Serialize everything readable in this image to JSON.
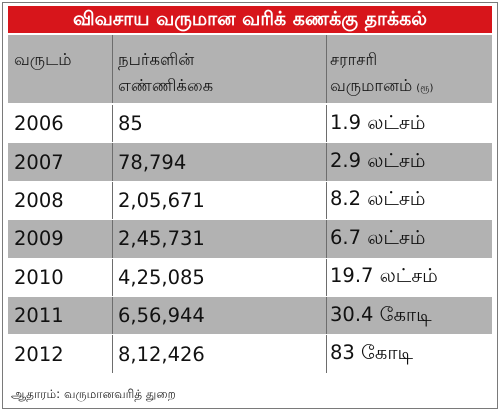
{
  "title": "விவசாய வருமான வரிக் கணக்கு தாக்கல்",
  "columns": {
    "year": "வருடம்",
    "count_line1": "நபர்களின்",
    "count_line2": "எண்ணிக்கை",
    "avg_line1": "சராசரி",
    "avg_line2": "வருமானம்",
    "avg_unit": "(ரூ)"
  },
  "rows": [
    {
      "year": "2006",
      "count": "85",
      "avg": "1.9 லட்சம்"
    },
    {
      "year": "2007",
      "count": "78,794",
      "avg": "2.9 லட்சம்"
    },
    {
      "year": "2008",
      "count": "2,05,671",
      "avg": "8.2 லட்சம்"
    },
    {
      "year": "2009",
      "count": "2,45,731",
      "avg": "6.7 லட்சம்"
    },
    {
      "year": "2010",
      "count": "4,25,085",
      "avg": "19.7 லட்சம்"
    },
    {
      "year": "2011",
      "count": "6,56,944",
      "avg": "30.4 கோடி"
    },
    {
      "year": "2012",
      "count": "8,12,426",
      "avg": "83 கோடி"
    }
  ],
  "source": "ஆதாரம்: வருமானவரித் துறை",
  "colors": {
    "title_bg": "#d7151b",
    "band": "#b2b2b2",
    "title_text": "#ffffff"
  }
}
